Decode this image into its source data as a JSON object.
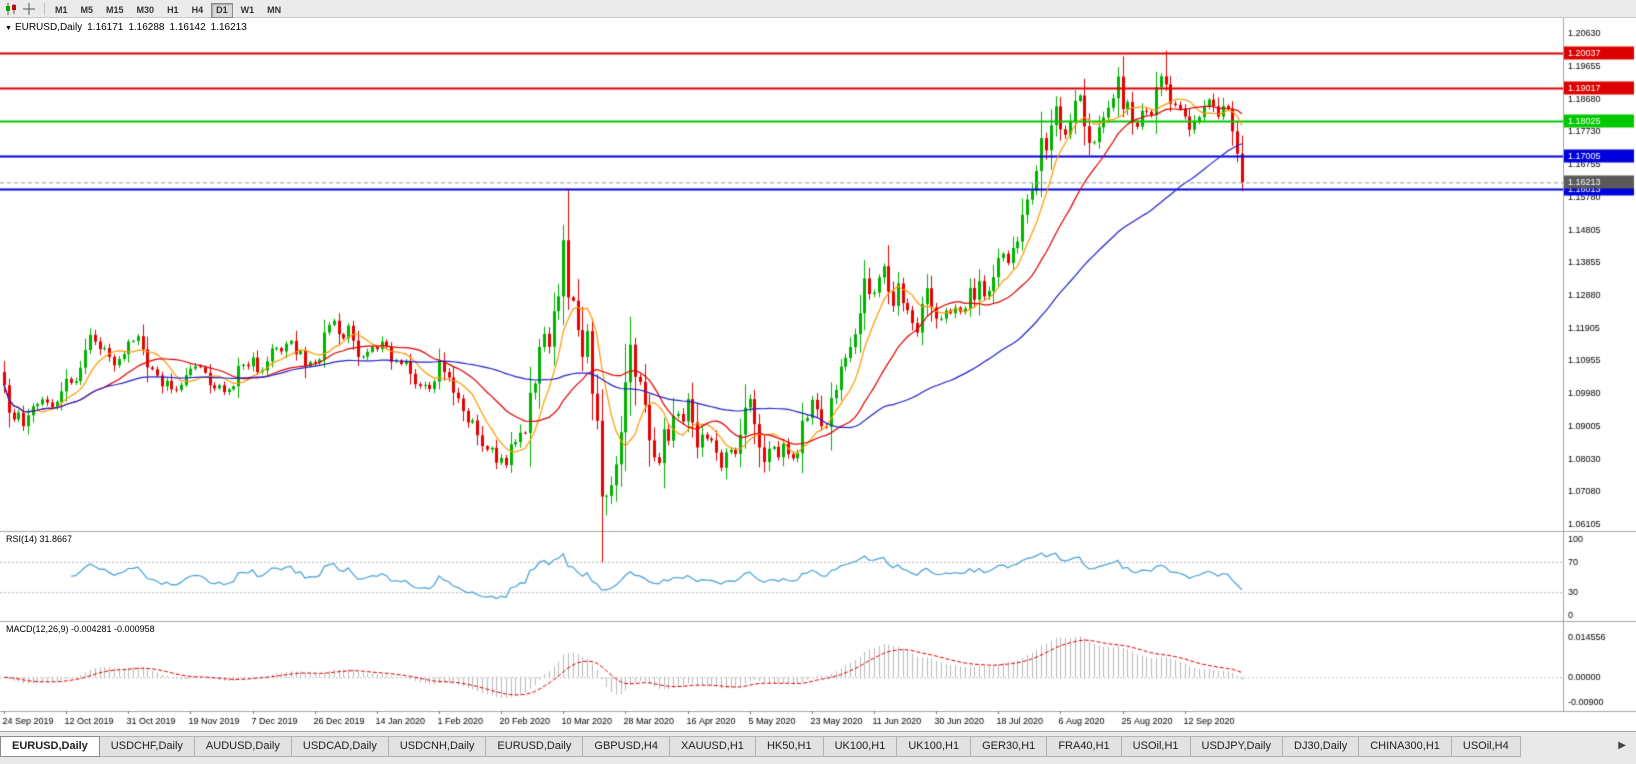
{
  "toolbar": {
    "timeframes": [
      "M1",
      "M5",
      "M15",
      "M30",
      "H1",
      "H4",
      "D1",
      "W1",
      "MN"
    ],
    "active_timeframe": "D1"
  },
  "chart_header": {
    "symbol": "EURUSD,Daily",
    "open": "1.16171",
    "high": "1.16288",
    "low": "1.16142",
    "close": "1.16213"
  },
  "indicators": {
    "rsi_label": "RSI(14) 31.8667",
    "macd_label": "MACD(12,26,9) -0.004281 -0.000958"
  },
  "icons": {
    "collapse_marker": "▼",
    "tab_scroll_right": "▶"
  },
  "chart_data": {
    "type": "candlestick",
    "symbol": "EURUSD",
    "period": "Daily",
    "open_first": 1.106,
    "closes": [
      1.1021,
      1.094,
      1.092,
      1.094,
      1.09,
      1.0932,
      1.0959,
      1.0965,
      1.0979,
      1.097,
      1.0957,
      1.0972,
      1.1003,
      1.104,
      1.1028,
      1.1033,
      1.1073,
      1.1125,
      1.117,
      1.115,
      1.1128,
      1.1131,
      1.1105,
      1.108,
      1.1099,
      1.1113,
      1.115,
      1.1152,
      1.1166,
      1.1127,
      1.1074,
      1.1068,
      1.105,
      1.1018,
      1.1034,
      1.1009,
      1.1007,
      1.1022,
      1.1051,
      1.107,
      1.1077,
      1.1074,
      1.1058,
      1.1021,
      1.1012,
      1.1021,
      1.1001,
      1.1009,
      1.1018,
      1.1078,
      1.1082,
      1.1077,
      1.1103,
      1.106,
      1.1065,
      1.1092,
      1.113,
      1.1131,
      1.1121,
      1.1144,
      1.1152,
      1.1113,
      1.1123,
      1.1078,
      1.109,
      1.1087,
      1.1097,
      1.1177,
      1.1199,
      1.1212,
      1.1172,
      1.116,
      1.1197,
      1.1153,
      1.1105,
      1.1106,
      1.112,
      1.1134,
      1.1128,
      1.115,
      1.1136,
      1.109,
      1.1095,
      1.1084,
      1.1093,
      1.1055,
      1.1024,
      1.1019,
      1.1022,
      1.101,
      1.1032,
      1.1094,
      1.106,
      1.1044,
      1.0999,
      1.0982,
      1.0945,
      1.0911,
      1.0917,
      1.0873,
      1.0841,
      1.0831,
      1.0836,
      1.0792,
      1.0806,
      1.0785,
      1.0846,
      1.0853,
      1.0881,
      1.088,
      1.0999,
      1.1026,
      1.1134,
      1.1173,
      1.1135,
      1.124,
      1.1284,
      1.145,
      1.1281,
      1.1271,
      1.1184,
      1.1105,
      1.1181,
      1.0996,
      1.0916,
      1.0692,
      1.0694,
      1.0725,
      1.0787,
      1.0882,
      1.103,
      1.1141,
      1.1046,
      1.1031,
      1.0963,
      1.0858,
      1.0808,
      1.0791,
      1.0891,
      1.0857,
      1.093,
      1.0936,
      1.0914,
      1.098,
      1.0911,
      1.0837,
      1.0875,
      1.0863,
      1.0858,
      1.0822,
      1.0777,
      1.0823,
      1.083,
      1.0818,
      1.0875,
      1.0955,
      1.098,
      1.0906,
      1.0837,
      1.0794,
      1.0833,
      1.0839,
      1.0808,
      1.0848,
      1.0817,
      1.0805,
      1.082,
      1.0916,
      1.0924,
      1.0978,
      1.095,
      1.09,
      1.0898,
      1.0983,
      1.1007,
      1.1076,
      1.1102,
      1.1134,
      1.1172,
      1.1234,
      1.1337,
      1.1291,
      1.1295,
      1.134,
      1.1373,
      1.1298,
      1.1256,
      1.1322,
      1.1264,
      1.1243,
      1.1205,
      1.1177,
      1.1261,
      1.1308,
      1.1251,
      1.1218,
      1.1218,
      1.1242,
      1.1234,
      1.1251,
      1.1239,
      1.1248,
      1.1309,
      1.1274,
      1.1329,
      1.1284,
      1.13,
      1.1341,
      1.1397,
      1.141,
      1.1383,
      1.1427,
      1.1446,
      1.1525,
      1.157,
      1.1596,
      1.1655,
      1.1752,
      1.1716,
      1.179,
      1.1846,
      1.1778,
      1.1762,
      1.1803,
      1.1862,
      1.1878,
      1.1787,
      1.1738,
      1.174,
      1.1784,
      1.1813,
      1.1842,
      1.187,
      1.1934,
      1.1838,
      1.1859,
      1.1797,
      1.1786,
      1.1833,
      1.183,
      1.182,
      1.1903,
      1.1935,
      1.1911,
      1.1854,
      1.185,
      1.1839,
      1.1816,
      1.1777,
      1.1802,
      1.1814,
      1.1845,
      1.1866,
      1.1846,
      1.1816,
      1.1847,
      1.1839,
      1.1772,
      1.1706,
      1.1621
    ],
    "wick_overrides": {
      "117": {
        "high": 1.1495
      },
      "126": {
        "low": 1.0636
      },
      "243": {
        "high": 1.2011
      }
    },
    "candle_up_color": "#00b200",
    "candle_down_color": "#e60000",
    "candles_per_tick": 13,
    "date_labels": [
      "24 Sep 2019",
      "12 Oct 2019",
      "31 Oct 2019",
      "19 Nov 2019",
      "7 Dec 2019",
      "26 Dec 2019",
      "14 Jan 2020",
      "1 Feb 2020",
      "20 Feb 2020",
      "10 Mar 2020",
      "28 Mar 2020",
      "16 Apr 2020",
      "5 May 2020",
      "23 May 2020",
      "11 Jun 2020",
      "30 Jun 2020",
      "18 Jul 2020",
      "6 Aug 2020",
      "25 Aug 2020",
      "12 Sep 2020"
    ],
    "y_ticks": [
      "1.20630",
      "1.19655",
      "1.18680",
      "1.17730",
      "1.16755",
      "1.15780",
      "1.14805",
      "1.13855",
      "1.12880",
      "1.11905",
      "1.10955",
      "1.09980",
      "1.09005",
      "1.08030",
      "1.07080",
      "1.06105"
    ],
    "hlines": [
      {
        "price": 1.20037,
        "label": "1.20037",
        "color": "#dd0000"
      },
      {
        "price": 1.19017,
        "label": "1.19017",
        "color": "#dd0000"
      },
      {
        "price": 1.18025,
        "label": "1.18025",
        "color": "#00c800"
      },
      {
        "price": 1.17005,
        "label": "1.17005",
        "color": "#0000dd"
      },
      {
        "price": 1.16013,
        "label": "1.16013",
        "color": "#0000dd"
      }
    ],
    "current_price": {
      "value": 1.16213,
      "label": "1.16213",
      "color": "#5a5a5a"
    },
    "ma": [
      {
        "period": 8,
        "color": "#ff9900"
      },
      {
        "period": 21,
        "color": "#e00000"
      },
      {
        "period": 55,
        "color": "#2222cc"
      }
    ],
    "rsi": {
      "period": 14,
      "value": 31.8667,
      "line_color": "#47a0d8",
      "level_labels": [
        "100",
        "70",
        "30",
        "0"
      ],
      "levels_dashed": [
        70,
        30
      ]
    },
    "macd": {
      "fast": 12,
      "slow": 26,
      "signal": 9,
      "hist_color": "#b9b9b9",
      "signal_color": "#e00000",
      "range": [
        -0.0115,
        0.0175
      ],
      "scale_labels": [
        {
          "text": "0.014556",
          "value": 0.014556
        },
        {
          "text": "0.00000",
          "value": 0
        },
        {
          "text": "-0.00900",
          "value": -0.009
        }
      ]
    }
  },
  "tabs": {
    "active_index": 0,
    "items": [
      "EURUSD,Daily",
      "USDCHF,Daily",
      "AUDUSD,Daily",
      "USDCAD,Daily",
      "USDCNH,Daily",
      "EURUSD,Daily",
      "GBPUSD,H4",
      "XAUUSD,H1",
      "HK50,H1",
      "UK100,H1",
      "UK100,H1",
      "GER30,H1",
      "FRA40,H1",
      "USOil,H1",
      "USDJPY,Daily",
      "DJ30,Daily",
      "CHINA300,H1",
      "USOil,H4"
    ]
  }
}
